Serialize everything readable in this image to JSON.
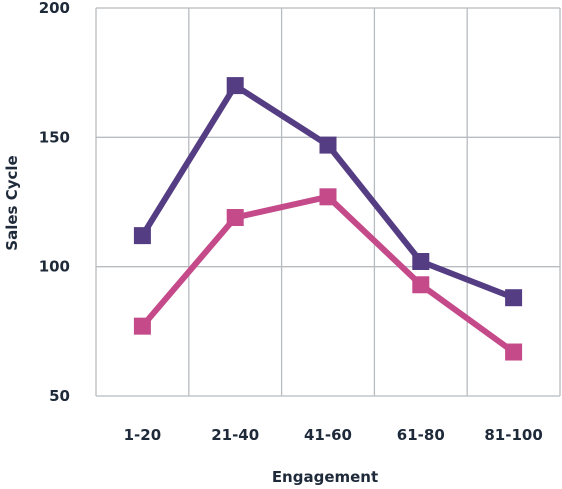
{
  "chart_data": {
    "type": "line",
    "title": "",
    "xlabel": "Engagement",
    "ylabel": "Sales Cycle",
    "categories": [
      "1-20",
      "21-40",
      "41-60",
      "61-80",
      "81-100"
    ],
    "ylim": [
      50,
      200
    ],
    "yticks": [
      50,
      100,
      150,
      200
    ],
    "grid": true,
    "legend": "none",
    "series": [
      {
        "color": "#553d83",
        "values": [
          112,
          170,
          147,
          102,
          88
        ]
      },
      {
        "color": "#c44a8a",
        "values": [
          77,
          119,
          127,
          93,
          67
        ]
      }
    ]
  }
}
